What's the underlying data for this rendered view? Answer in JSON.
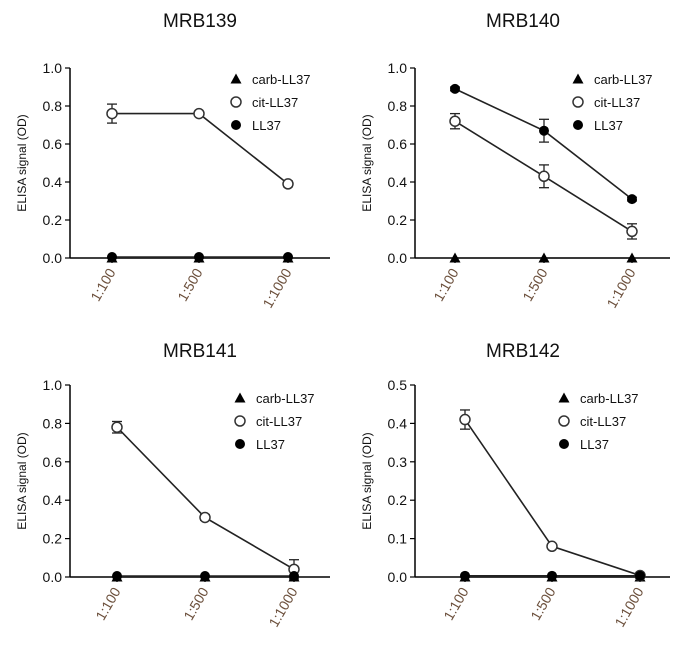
{
  "chart_data": [
    {
      "type": "line",
      "title": "MRB139",
      "ylabel": "ELISA signal (OD)",
      "categories": [
        "1:100",
        "1:500",
        "1:1000"
      ],
      "ylim": [
        0,
        1.0
      ],
      "yticks": [
        "0.0",
        "0.2",
        "0.4",
        "0.6",
        "0.8",
        "1.0"
      ],
      "legend_position": "top-right",
      "series": [
        {
          "name": "carb-LL37",
          "marker": "triangle",
          "values": [
            0.0,
            0.0,
            0.0
          ],
          "errors": [
            0,
            0,
            0
          ]
        },
        {
          "name": "cit-LL37",
          "marker": "open-circle",
          "values": [
            0.76,
            0.76,
            0.39
          ],
          "errors": [
            0.05,
            0.01,
            0.015
          ]
        },
        {
          "name": "LL37",
          "marker": "filled-circle",
          "values": [
            0.005,
            0.005,
            0.005
          ],
          "errors": [
            0,
            0,
            0
          ]
        }
      ]
    },
    {
      "type": "line",
      "title": "MRB140",
      "ylabel": "ELISA signal (OD)",
      "categories": [
        "1:100",
        "1:500",
        "1:1000"
      ],
      "ylim": [
        0,
        1.0
      ],
      "yticks": [
        "0.0",
        "0.2",
        "0.4",
        "0.6",
        "0.8",
        "1.0"
      ],
      "legend_position": "top-right",
      "series": [
        {
          "name": "carb-LL37",
          "marker": "triangle",
          "values": [
            0.0,
            0.0,
            0.0
          ],
          "errors": [
            0,
            0,
            0
          ]
        },
        {
          "name": "cit-LL37",
          "marker": "open-circle",
          "values": [
            0.72,
            0.43,
            0.14
          ],
          "errors": [
            0.04,
            0.06,
            0.04
          ]
        },
        {
          "name": "LL37",
          "marker": "filled-circle",
          "values": [
            0.89,
            0.67,
            0.31
          ],
          "errors": [
            0.01,
            0.06,
            0.01
          ]
        }
      ]
    },
    {
      "type": "line",
      "title": "MRB141",
      "ylabel": "ELISA signal (OD)",
      "categories": [
        "1:100",
        "1:500",
        "1:1000"
      ],
      "ylim": [
        0,
        1.0
      ],
      "yticks": [
        "0.0",
        "0.2",
        "0.4",
        "0.6",
        "0.8",
        "1.0"
      ],
      "legend_position": "top-right",
      "series": [
        {
          "name": "carb-LL37",
          "marker": "triangle",
          "values": [
            0.0,
            0.0,
            0.0
          ],
          "errors": [
            0,
            0,
            0
          ]
        },
        {
          "name": "cit-LL37",
          "marker": "open-circle",
          "values": [
            0.78,
            0.31,
            0.04
          ],
          "errors": [
            0.03,
            0.015,
            0.05
          ]
        },
        {
          "name": "LL37",
          "marker": "filled-circle",
          "values": [
            0.005,
            0.005,
            0.005
          ],
          "errors": [
            0,
            0,
            0
          ]
        }
      ]
    },
    {
      "type": "line",
      "title": "MRB142",
      "ylabel": "ELISA signal (OD)",
      "categories": [
        "1:100",
        "1:500",
        "1:1000"
      ],
      "ylim": [
        0,
        0.5
      ],
      "yticks": [
        "0.0",
        "0.1",
        "0.2",
        "0.3",
        "0.4",
        "0.5"
      ],
      "legend_position": "top-right",
      "series": [
        {
          "name": "carb-LL37",
          "marker": "triangle",
          "values": [
            0.0,
            0.0,
            0.0
          ],
          "errors": [
            0,
            0,
            0
          ]
        },
        {
          "name": "cit-LL37",
          "marker": "open-circle",
          "values": [
            0.41,
            0.08,
            0.004
          ],
          "errors": [
            0.025,
            0.005,
            0
          ]
        },
        {
          "name": "LL37",
          "marker": "filled-circle",
          "values": [
            0.003,
            0.003,
            0.003
          ],
          "errors": [
            0,
            0,
            0
          ]
        }
      ]
    }
  ]
}
